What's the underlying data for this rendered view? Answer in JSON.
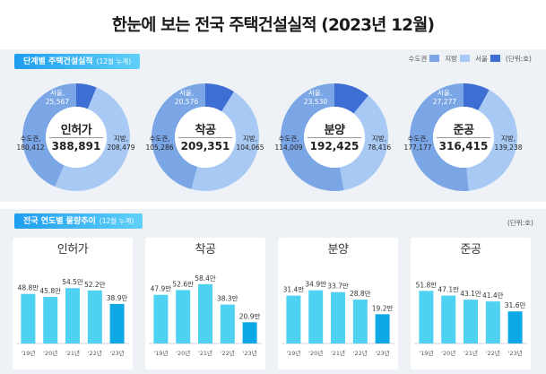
{
  "title": "한눈에 보는 전국 주택건설실적 (2023년 12월)",
  "section1": {
    "label": "단계별 주택건설실적",
    "sub": "(12월 누계)"
  },
  "section2": {
    "label": "전국 연도별 물량추이",
    "sub": "(12월 누계)"
  },
  "legend": {
    "capital": "수도권",
    "local": "지방",
    "seoul": "서울",
    "unit": "(단위:호)"
  },
  "unit2": "(단위:호)",
  "colors": {
    "capital": "#7ba6e6",
    "local": "#a9c9f5",
    "seoul": "#3c6ed4",
    "bar_light": "#4fd2f2",
    "bar_dark": "#0fa8e6",
    "tag_start": "#1f9ef0",
    "tag_end": "#5fd0f7"
  },
  "donuts": [
    {
      "name": "인허가",
      "total": "388,891",
      "seoul_label": "서울,",
      "seoul_value": "25,567",
      "capital_label": "수도권,",
      "capital_value": "180,412",
      "local_label": "지방,",
      "local_value": "208,479",
      "seoul": 25567,
      "capital": 180412,
      "local": 208479
    },
    {
      "name": "착공",
      "total": "209,351",
      "seoul_label": "서울,",
      "seoul_value": "20,576",
      "capital_label": "수도권,",
      "capital_value": "105,286",
      "local_label": "지방,",
      "local_value": "104,065",
      "seoul": 20576,
      "capital": 105286,
      "local": 104065
    },
    {
      "name": "분양",
      "total": "192,425",
      "seoul_label": "서울,",
      "seoul_value": "23,530",
      "capital_label": "수도권,",
      "capital_value": "114,009",
      "local_label": "지방,",
      "local_value": "78,416",
      "seoul": 23530,
      "capital": 114009,
      "local": 78416
    },
    {
      "name": "준공",
      "total": "316,415",
      "seoul_label": "서울,",
      "seoul_value": "27,277",
      "capital_label": "수도권,",
      "capital_value": "177,177",
      "local_label": "지방,",
      "local_value": "139,238",
      "seoul": 27277,
      "capital": 177177,
      "local": 139238
    }
  ],
  "chart_data": [
    {
      "type": "bar",
      "title": "인허가",
      "categories": [
        "'19년",
        "'20년",
        "'21년",
        "'22년",
        "'23년"
      ],
      "values": [
        48.8,
        45.8,
        54.5,
        52.2,
        38.9
      ],
      "labels": [
        "48.8만",
        "45.8만",
        "54.5만",
        "52.2만",
        "38.9만"
      ],
      "ylim": [
        0,
        60
      ]
    },
    {
      "type": "bar",
      "title": "착공",
      "categories": [
        "'19년",
        "'20년",
        "'21년",
        "'22년",
        "'23년"
      ],
      "values": [
        47.9,
        52.6,
        58.4,
        38.3,
        20.9
      ],
      "labels": [
        "47.9만",
        "52.6만",
        "58.4만",
        "38.3만",
        "20.9만"
      ],
      "ylim": [
        0,
        60
      ]
    },
    {
      "type": "bar",
      "title": "분양",
      "categories": [
        "'19년",
        "'20년",
        "'21년",
        "'22년",
        "'23년"
      ],
      "values": [
        31.4,
        34.9,
        33.7,
        28.8,
        19.2
      ],
      "labels": [
        "31.4만",
        "34.9만",
        "33.7만",
        "28.8만",
        "19.2만"
      ],
      "ylim": [
        0,
        40
      ]
    },
    {
      "type": "bar",
      "title": "준공",
      "categories": [
        "'19년",
        "'20년",
        "'21년",
        "'22년",
        "'23년"
      ],
      "values": [
        51.8,
        47.1,
        43.1,
        41.4,
        31.6
      ],
      "labels": [
        "51.8만",
        "47.1만",
        "43.1만",
        "41.4만",
        "31.6만"
      ],
      "ylim": [
        0,
        60
      ]
    }
  ]
}
